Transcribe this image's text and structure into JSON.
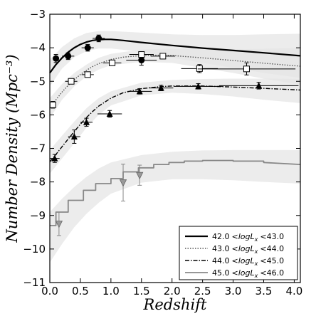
{
  "chart_data": {
    "type": "line",
    "xlabel": "Redshift",
    "ylabel": "Number Density (Mpc⁻³)",
    "xlim": [
      0.0,
      4.1
    ],
    "ylim": [
      -11,
      -3
    ],
    "xticks": [
      "0.0",
      "0.5",
      "1.0",
      "1.5",
      "2.0",
      "2.5",
      "3.0",
      "3.5",
      "4.0"
    ],
    "yticks": [
      "-3",
      "-4",
      "-5",
      "-6",
      "-7",
      "-8",
      "-9",
      "-10",
      "-11"
    ],
    "legend_position": "bottom-right",
    "colors": {
      "bin1": "#000000",
      "bin2": "#555555",
      "bin3": "#000000",
      "bin4": "#888888",
      "band": "#e6e6e6"
    },
    "series": [
      {
        "name": "42.0 <logLx <43.0",
        "style": "solid",
        "model": [
          [
            0.0,
            -4.75
          ],
          [
            0.1,
            -4.5
          ],
          [
            0.2,
            -4.3
          ],
          [
            0.3,
            -4.13
          ],
          [
            0.4,
            -4.0
          ],
          [
            0.5,
            -3.9
          ],
          [
            0.6,
            -3.83
          ],
          [
            0.7,
            -3.78
          ],
          [
            0.8,
            -3.76
          ],
          [
            0.9,
            -3.75
          ],
          [
            1.0,
            -3.75
          ],
          [
            1.2,
            -3.78
          ],
          [
            1.5,
            -3.84
          ],
          [
            2.0,
            -3.93
          ],
          [
            2.5,
            -4.01
          ],
          [
            3.0,
            -4.08
          ],
          [
            3.5,
            -4.15
          ],
          [
            4.1,
            -4.24
          ]
        ],
        "band_upper": [
          [
            0.0,
            -4.35
          ],
          [
            0.2,
            -3.98
          ],
          [
            0.4,
            -3.72
          ],
          [
            0.6,
            -3.56
          ],
          [
            0.8,
            -3.5
          ],
          [
            1.0,
            -3.5
          ],
          [
            1.5,
            -3.55
          ],
          [
            2.0,
            -3.6
          ],
          [
            2.5,
            -3.62
          ],
          [
            3.0,
            -3.62
          ],
          [
            3.5,
            -3.6
          ],
          [
            4.1,
            -3.58
          ]
        ],
        "band_lower": [
          [
            0.0,
            -5.15
          ],
          [
            0.2,
            -4.62
          ],
          [
            0.4,
            -4.28
          ],
          [
            0.6,
            -4.1
          ],
          [
            0.8,
            -4.02
          ],
          [
            1.0,
            -4.02
          ],
          [
            1.5,
            -4.12
          ],
          [
            2.0,
            -4.3
          ],
          [
            2.5,
            -4.45
          ],
          [
            3.0,
            -4.6
          ],
          [
            3.5,
            -4.75
          ],
          [
            4.1,
            -4.9
          ]
        ],
        "points": [
          {
            "x": 0.1,
            "y": -4.32,
            "xerr": 0.05,
            "yerr": 0.12
          },
          {
            "x": 0.3,
            "y": -4.25,
            "xerr": 0.1,
            "yerr": 0.1
          },
          {
            "x": 0.62,
            "y": -4.0,
            "xerr": 0.1,
            "yerr": 0.1
          },
          {
            "x": 0.8,
            "y": -3.72,
            "xerr": 0.1,
            "yerr": 0.1
          },
          {
            "x": 1.5,
            "y": -4.37,
            "xerr": 0.25,
            "yerr": 0.15
          }
        ]
      },
      {
        "name": "43.0 <logLx <44.0",
        "style": "dotted",
        "model": [
          [
            0.0,
            -5.8
          ],
          [
            0.1,
            -5.55
          ],
          [
            0.2,
            -5.32
          ],
          [
            0.3,
            -5.12
          ],
          [
            0.4,
            -4.95
          ],
          [
            0.5,
            -4.8
          ],
          [
            0.6,
            -4.67
          ],
          [
            0.7,
            -4.56
          ],
          [
            0.8,
            -4.47
          ],
          [
            1.0,
            -4.35
          ],
          [
            1.2,
            -4.28
          ],
          [
            1.5,
            -4.23
          ],
          [
            1.8,
            -4.22
          ],
          [
            2.0,
            -4.23
          ],
          [
            2.5,
            -4.3
          ],
          [
            3.0,
            -4.38
          ],
          [
            3.5,
            -4.46
          ],
          [
            4.1,
            -4.55
          ]
        ],
        "band_upper": [
          [
            0.0,
            -5.5
          ],
          [
            0.2,
            -5.08
          ],
          [
            0.4,
            -4.75
          ],
          [
            0.6,
            -4.5
          ],
          [
            0.8,
            -4.3
          ],
          [
            1.0,
            -4.18
          ],
          [
            1.5,
            -4.05
          ],
          [
            2.0,
            -4.03
          ],
          [
            2.5,
            -4.05
          ],
          [
            3.0,
            -4.05
          ],
          [
            3.5,
            -4.03
          ],
          [
            4.1,
            -4.0
          ]
        ],
        "band_lower": [
          [
            0.0,
            -6.1
          ],
          [
            0.2,
            -5.55
          ],
          [
            0.4,
            -5.15
          ],
          [
            0.6,
            -4.85
          ],
          [
            0.8,
            -4.65
          ],
          [
            1.0,
            -4.52
          ],
          [
            1.5,
            -4.42
          ],
          [
            2.0,
            -4.45
          ],
          [
            2.5,
            -4.6
          ],
          [
            3.0,
            -4.75
          ],
          [
            3.5,
            -4.92
          ],
          [
            4.1,
            -5.1
          ]
        ],
        "points": [
          {
            "x": 0.05,
            "y": -5.7,
            "xerr": 0.05,
            "yerr": 0.1
          },
          {
            "x": 0.35,
            "y": -5.0,
            "xerr": 0.1,
            "yerr": 0.08
          },
          {
            "x": 0.62,
            "y": -4.8,
            "xerr": 0.1,
            "yerr": 0.08
          },
          {
            "x": 1.02,
            "y": -4.45,
            "xerr": 0.15,
            "yerr": 0.08
          },
          {
            "x": 1.5,
            "y": -4.2,
            "xerr": 0.2,
            "yerr": 0.08
          },
          {
            "x": 1.85,
            "y": -4.25,
            "xerr": 0.2,
            "yerr": 0.08
          },
          {
            "x": 2.45,
            "y": -4.62,
            "xerr": 0.3,
            "yerr": 0.12
          },
          {
            "x": 3.22,
            "y": -4.63,
            "xerr": 0.8,
            "yerr": 0.18
          }
        ]
      },
      {
        "name": "44.0 <logLx <45.0",
        "style": "dashdot",
        "model": [
          [
            0.0,
            -7.4
          ],
          [
            0.1,
            -7.18
          ],
          [
            0.2,
            -6.95
          ],
          [
            0.3,
            -6.72
          ],
          [
            0.4,
            -6.5
          ],
          [
            0.5,
            -6.28
          ],
          [
            0.6,
            -6.08
          ],
          [
            0.7,
            -5.9
          ],
          [
            0.8,
            -5.74
          ],
          [
            1.0,
            -5.5
          ],
          [
            1.2,
            -5.34
          ],
          [
            1.5,
            -5.22
          ],
          [
            1.8,
            -5.16
          ],
          [
            2.0,
            -5.14
          ],
          [
            2.5,
            -5.14
          ],
          [
            3.0,
            -5.17
          ],
          [
            3.5,
            -5.21
          ],
          [
            4.1,
            -5.26
          ]
        ],
        "band_upper": [
          [
            0.0,
            -7.05
          ],
          [
            0.2,
            -6.62
          ],
          [
            0.4,
            -6.2
          ],
          [
            0.6,
            -5.8
          ],
          [
            0.8,
            -5.5
          ],
          [
            1.0,
            -5.3
          ],
          [
            1.5,
            -5.04
          ],
          [
            2.0,
            -4.96
          ],
          [
            2.5,
            -4.93
          ],
          [
            3.0,
            -4.92
          ],
          [
            3.5,
            -4.92
          ],
          [
            4.1,
            -4.93
          ]
        ],
        "band_lower": [
          [
            0.0,
            -7.75
          ],
          [
            0.2,
            -7.3
          ],
          [
            0.4,
            -6.85
          ],
          [
            0.6,
            -6.38
          ],
          [
            0.8,
            -6.0
          ],
          [
            1.0,
            -5.72
          ],
          [
            1.5,
            -5.42
          ],
          [
            2.0,
            -5.34
          ],
          [
            2.5,
            -5.38
          ],
          [
            3.0,
            -5.45
          ],
          [
            3.5,
            -5.55
          ],
          [
            4.1,
            -5.65
          ]
        ],
        "points": [
          {
            "x": 0.08,
            "y": -7.3,
            "xerr": 0.08,
            "yerr": 0.12
          },
          {
            "x": 0.4,
            "y": -6.65,
            "xerr": 0.1,
            "yerr": 0.2
          },
          {
            "x": 0.6,
            "y": -6.22,
            "xerr": 0.1,
            "yerr": 0.12
          },
          {
            "x": 0.98,
            "y": -5.97,
            "xerr": 0.2,
            "yerr": 0.1
          },
          {
            "x": 1.47,
            "y": -5.3,
            "xerr": 0.2,
            "yerr": 0.08
          },
          {
            "x": 1.82,
            "y": -5.2,
            "xerr": 0.2,
            "yerr": 0.08
          },
          {
            "x": 2.43,
            "y": -5.15,
            "xerr": 0.4,
            "yerr": 0.08
          },
          {
            "x": 3.42,
            "y": -5.13,
            "xerr": 0.65,
            "yerr": 0.1
          }
        ]
      },
      {
        "name": "45.0 <logLx <46.0",
        "style": "steps",
        "model": [
          [
            0.0,
            -9.3
          ],
          [
            0.1,
            -9.3
          ],
          [
            0.1,
            -8.9
          ],
          [
            0.3,
            -8.9
          ],
          [
            0.3,
            -8.55
          ],
          [
            0.55,
            -8.55
          ],
          [
            0.55,
            -8.25
          ],
          [
            0.75,
            -8.25
          ],
          [
            0.75,
            -8.05
          ],
          [
            1.0,
            -8.05
          ],
          [
            1.0,
            -7.9
          ],
          [
            1.2,
            -7.9
          ],
          [
            1.2,
            -7.7
          ],
          [
            1.45,
            -7.7
          ],
          [
            1.45,
            -7.58
          ],
          [
            1.7,
            -7.58
          ],
          [
            1.7,
            -7.48
          ],
          [
            1.95,
            -7.48
          ],
          [
            1.95,
            -7.42
          ],
          [
            2.2,
            -7.42
          ],
          [
            2.2,
            -7.38
          ],
          [
            2.5,
            -7.38
          ],
          [
            2.5,
            -7.36
          ],
          [
            3.0,
            -7.36
          ],
          [
            3.0,
            -7.38
          ],
          [
            3.5,
            -7.38
          ],
          [
            3.5,
            -7.42
          ],
          [
            4.1,
            -7.48
          ]
        ],
        "band_upper": [
          [
            0.0,
            -8.9
          ],
          [
            0.2,
            -8.5
          ],
          [
            0.4,
            -8.15
          ],
          [
            0.6,
            -7.85
          ],
          [
            0.8,
            -7.6
          ],
          [
            1.0,
            -7.42
          ],
          [
            1.5,
            -7.2
          ],
          [
            2.0,
            -7.1
          ],
          [
            2.5,
            -7.06
          ],
          [
            3.0,
            -7.05
          ],
          [
            3.5,
            -7.05
          ],
          [
            4.1,
            -7.05
          ]
        ],
        "band_lower": [
          [
            0.0,
            -10.4
          ],
          [
            0.2,
            -9.85
          ],
          [
            0.4,
            -9.35
          ],
          [
            0.6,
            -8.95
          ],
          [
            0.8,
            -8.62
          ],
          [
            1.0,
            -8.35
          ],
          [
            1.5,
            -8.02
          ],
          [
            2.0,
            -7.92
          ],
          [
            2.5,
            -7.92
          ],
          [
            3.0,
            -7.95
          ],
          [
            3.5,
            -8.0
          ],
          [
            4.1,
            -8.05
          ]
        ],
        "points": [
          {
            "x": 0.15,
            "y": -9.25,
            "xerr": 0.0,
            "yerr": 0.35
          },
          {
            "x": 1.2,
            "y": -8.02,
            "xerr": 0.0,
            "yerr": 0.55
          },
          {
            "x": 1.47,
            "y": -7.8,
            "xerr": 0.0,
            "yerr": 0.3
          }
        ]
      }
    ]
  },
  "legend": {
    "entries": [
      {
        "low": "42.0",
        "high": "43.0"
      },
      {
        "low": "43.0",
        "high": "44.0"
      },
      {
        "low": "44.0",
        "high": "45.0"
      },
      {
        "low": "45.0",
        "high": "46.0"
      }
    ],
    "lt_symbol": "<logL",
    "subscript": "x"
  }
}
